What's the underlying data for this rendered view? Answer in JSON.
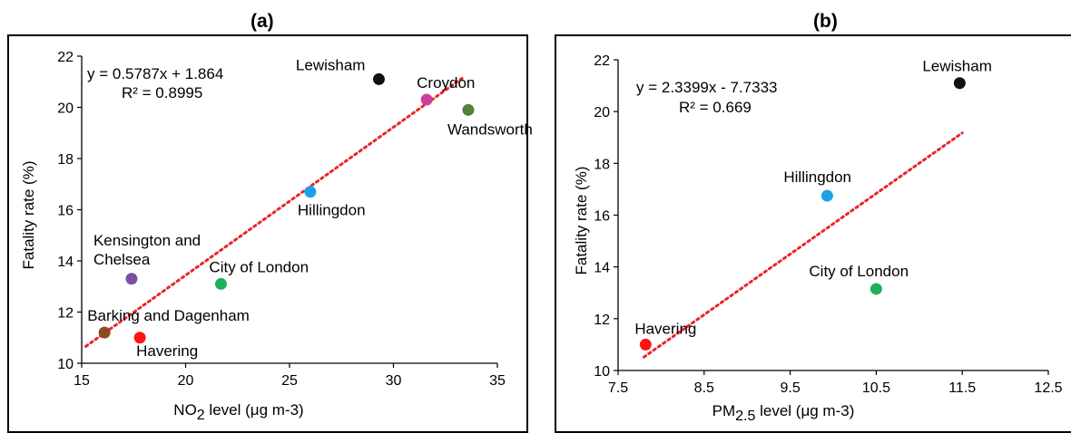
{
  "chart_data": [
    {
      "type": "scatter",
      "panel_label": "(a)",
      "xlabel": "NO",
      "xlabel_sub": "2",
      "xlabel_rest": " level (μg m-3)",
      "ylabel": "Fatality rate (%)",
      "xlim": [
        15,
        35
      ],
      "ylim": [
        10,
        22
      ],
      "xticks": [
        "15",
        "20",
        "25",
        "30",
        "35"
      ],
      "yticks": [
        "10",
        "12",
        "14",
        "16",
        "18",
        "20",
        "22"
      ],
      "equation": "y = 0.5787x + 1.864",
      "r2": "R² = 0.8995",
      "trendline": {
        "slope": 0.5787,
        "intercept": 1.864,
        "x_range": [
          15.2,
          33.3
        ],
        "color": "#e8262a"
      },
      "points": [
        {
          "name": "Lewisham",
          "x": 29.3,
          "y": 21.1,
          "color": "#111111",
          "label_lines": [
            "Lewisham"
          ]
        },
        {
          "name": "Croydon",
          "x": 31.6,
          "y": 20.3,
          "color": "#cc3f9e",
          "label_lines": [
            "Croydon"
          ]
        },
        {
          "name": "Wandsworth",
          "x": 33.6,
          "y": 19.9,
          "color": "#548235",
          "label_lines": [
            "Wandsworth"
          ]
        },
        {
          "name": "Hillingdon",
          "x": 26.0,
          "y": 16.7,
          "color": "#1ea0e6",
          "label_lines": [
            "Hillingdon"
          ]
        },
        {
          "name": "Kensington and Chelsea",
          "x": 17.4,
          "y": 13.3,
          "color": "#7a4fa8",
          "label_lines": [
            "Kensington and",
            "Chelsea"
          ]
        },
        {
          "name": "City of London",
          "x": 21.7,
          "y": 13.1,
          "color": "#1fb05a",
          "label_lines": [
            "City of London"
          ]
        },
        {
          "name": "Barking and Dagenham",
          "x": 16.1,
          "y": 11.2,
          "color": "#8b4a1a",
          "label_lines": [
            "Barking and Dagenham"
          ]
        },
        {
          "name": "Havering",
          "x": 17.8,
          "y": 11.0,
          "color": "#ff1414",
          "label_lines": [
            "Havering"
          ]
        }
      ]
    },
    {
      "type": "scatter",
      "panel_label": "(b)",
      "xlabel": "PM",
      "xlabel_sub": "2.5",
      "xlabel_rest": " level (μg m-3)",
      "ylabel": "Fatality rate (%)",
      "xlim": [
        7.5,
        12.5
      ],
      "ylim": [
        10,
        22
      ],
      "xticks": [
        "7.5",
        "8.5",
        "9.5",
        "10.5",
        "11.5",
        "12.5"
      ],
      "yticks": [
        "10",
        "12",
        "14",
        "16",
        "18",
        "20",
        "22"
      ],
      "equation": "y = 2.3399x - 7.7333",
      "r2": "R² = 0.669",
      "trendline": {
        "slope": 2.3399,
        "intercept": -7.7333,
        "x_range": [
          7.8,
          11.5
        ],
        "color": "#e8262a"
      },
      "points": [
        {
          "name": "Lewisham",
          "x": 11.47,
          "y": 21.1,
          "color": "#111111",
          "label_lines": [
            "Lewisham"
          ]
        },
        {
          "name": "Hillingdon",
          "x": 9.93,
          "y": 16.75,
          "color": "#1ea0e6",
          "label_lines": [
            "Hillingdon"
          ]
        },
        {
          "name": "City of London",
          "x": 10.5,
          "y": 13.15,
          "color": "#1fb05a",
          "label_lines": [
            "City of London"
          ]
        },
        {
          "name": "Havering",
          "x": 7.82,
          "y": 11.0,
          "color": "#ff1414",
          "label_lines": [
            "Havering"
          ]
        }
      ]
    }
  ]
}
